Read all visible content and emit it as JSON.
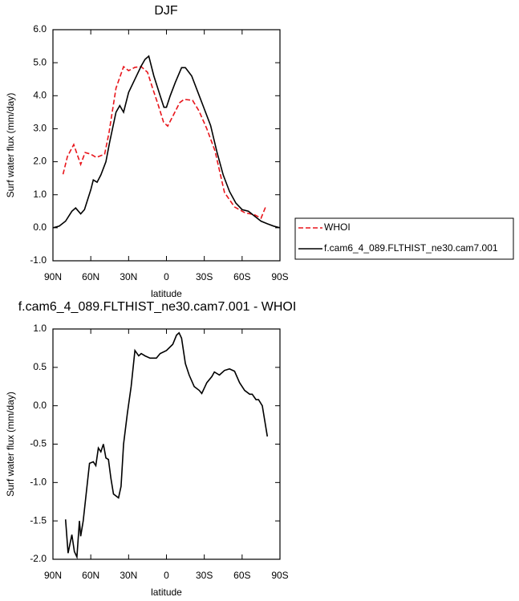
{
  "chart_data": [
    {
      "type": "line",
      "title": "DJF",
      "xlabel": "latitude",
      "ylabel": "Surf water flux (mm/day)",
      "xlim": [
        90,
        -90
      ],
      "xticks": [
        {
          "value": 90,
          "label": "90N"
        },
        {
          "value": 60,
          "label": "60N"
        },
        {
          "value": 30,
          "label": "30N"
        },
        0,
        {
          "value": -30,
          "label": "30S"
        },
        {
          "value": -60,
          "label": "60S"
        },
        {
          "value": -90,
          "label": "90S"
        }
      ],
      "ylim": [
        -1,
        6
      ],
      "yticks": [
        {
          "value": -1,
          "label": "-1.0"
        },
        {
          "value": 0,
          "label": "0.0"
        },
        {
          "value": 1,
          "label": "1.0"
        },
        {
          "value": 2,
          "label": "2.0"
        },
        {
          "value": 3,
          "label": "3.0"
        },
        {
          "value": 4,
          "label": "4.0"
        },
        {
          "value": 5,
          "label": "5.0"
        },
        {
          "value": 6,
          "label": "6.0"
        }
      ],
      "legend": "outside right",
      "series": [
        {
          "name": "WHOI",
          "color": "#e8151b",
          "dashed": true,
          "x": [
            82,
            78.5,
            73.5,
            68,
            64.5,
            60,
            55.6,
            49,
            45.5,
            40,
            34,
            30,
            25,
            20,
            15,
            11,
            6.7,
            2.3,
            -1,
            -5.6,
            -10.5,
            -14,
            -20.7,
            -25.8,
            -32,
            -38.5,
            -46,
            -54,
            -62,
            -70,
            -75,
            -78.6
          ],
          "values": [
            1.62,
            2.16,
            2.52,
            1.92,
            2.28,
            2.23,
            2.13,
            2.23,
            2.89,
            4.23,
            4.88,
            4.76,
            4.86,
            4.88,
            4.71,
            4.23,
            3.74,
            3.2,
            3.08,
            3.42,
            3.79,
            3.89,
            3.86,
            3.54,
            3.0,
            2.33,
            1.07,
            0.63,
            0.46,
            0.39,
            0.29,
            0.63
          ]
        },
        {
          "name": "f.cam6_4_089.FLTHIST_ne30.cam7.001",
          "color": "#000000",
          "dashed": false,
          "x": [
            90,
            85,
            80,
            75,
            72,
            68,
            65,
            60,
            58,
            55,
            52,
            48,
            45,
            40,
            37,
            34,
            30,
            25,
            20,
            17,
            14,
            10,
            5,
            2,
            0,
            -3,
            -7,
            -12,
            -15,
            -20,
            -25,
            -30,
            -35,
            -40,
            -45,
            -50,
            -55,
            -60,
            -65,
            -70,
            -75,
            -80,
            -85,
            -90
          ],
          "values": [
            0.0,
            0.05,
            0.2,
            0.5,
            0.6,
            0.42,
            0.55,
            1.15,
            1.45,
            1.38,
            1.6,
            2.0,
            2.6,
            3.5,
            3.7,
            3.5,
            4.1,
            4.5,
            4.9,
            5.1,
            5.2,
            4.6,
            4.0,
            3.65,
            3.65,
            4.0,
            4.4,
            4.85,
            4.85,
            4.6,
            4.1,
            3.6,
            3.1,
            2.3,
            1.6,
            1.1,
            0.75,
            0.55,
            0.5,
            0.35,
            0.2,
            0.12,
            0.05,
            0.0
          ]
        }
      ]
    },
    {
      "type": "line",
      "title": "f.cam6_4_089.FLTHIST_ne30.cam7.001 - WHOI",
      "xlabel": "latitude",
      "ylabel": "Surf water flux (mm/day)",
      "xlim": [
        90,
        -90
      ],
      "xticks": [
        {
          "value": 90,
          "label": "90N"
        },
        {
          "value": 60,
          "label": "60N"
        },
        {
          "value": 30,
          "label": "30N"
        },
        0,
        {
          "value": -30,
          "label": "30S"
        },
        {
          "value": -60,
          "label": "60S"
        },
        {
          "value": -90,
          "label": "90S"
        }
      ],
      "ylim": [
        -2,
        1
      ],
      "yticks": [
        {
          "value": -2,
          "label": "-2.0"
        },
        {
          "value": -1.5,
          "label": "-1.5"
        },
        {
          "value": -1,
          "label": "-1.0"
        },
        -0.5,
        {
          "value": 0,
          "label": "0.0"
        },
        0.5,
        {
          "value": 1,
          "label": "1.0"
        }
      ],
      "series": [
        {
          "color": "#000000",
          "dashed": false,
          "x": [
            80,
            78,
            75,
            73,
            71,
            69,
            68,
            66,
            64,
            61,
            58,
            56,
            54,
            52,
            50,
            48,
            46,
            44,
            42,
            38,
            36,
            34,
            31,
            28,
            25,
            22,
            20,
            17,
            13,
            8,
            5,
            0,
            -5,
            -8,
            -10,
            -12,
            -15,
            -18,
            -22,
            -26,
            -28,
            -32,
            -36,
            -38,
            -42,
            -46,
            -50,
            -54,
            -58,
            -62,
            -66,
            -68,
            -71,
            -73,
            -76,
            -80
          ],
          "values": [
            -1.48,
            -1.92,
            -1.68,
            -1.9,
            -1.97,
            -1.5,
            -1.7,
            -1.5,
            -1.2,
            -0.75,
            -0.73,
            -0.78,
            -0.55,
            -0.6,
            -0.5,
            -0.68,
            -0.7,
            -0.95,
            -1.15,
            -1.2,
            -1.05,
            -0.5,
            -0.1,
            0.25,
            0.72,
            0.65,
            0.68,
            0.65,
            0.62,
            0.62,
            0.68,
            0.72,
            0.8,
            0.92,
            0.95,
            0.88,
            0.55,
            0.4,
            0.25,
            0.2,
            0.16,
            0.3,
            0.38,
            0.44,
            0.4,
            0.46,
            0.48,
            0.45,
            0.3,
            0.2,
            0.15,
            0.15,
            0.08,
            0.08,
            0.0,
            -0.4
          ]
        }
      ]
    }
  ]
}
